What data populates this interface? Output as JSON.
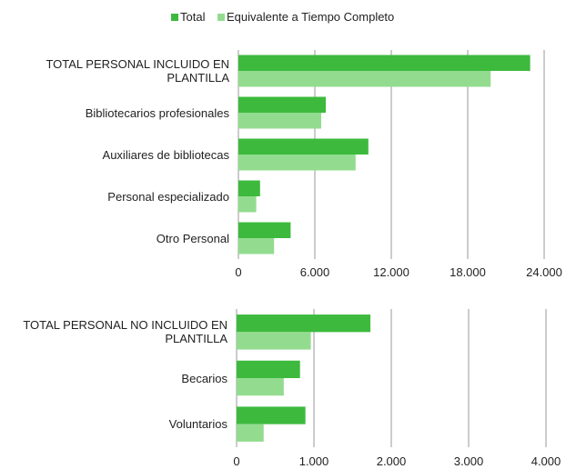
{
  "chart_data": [
    {
      "type": "hbar",
      "categories": [
        "TOTAL PERSONAL INCLUIDO EN PLANTILLA",
        "Bibliotecarios profesionales",
        "Auxiliares de bibliotecas",
        "Personal especializado",
        "Otro Personal"
      ],
      "series": [
        {
          "name": "Total",
          "color": "#3dba3d",
          "values": [
            22900,
            6860,
            10200,
            1700,
            4100
          ]
        },
        {
          "name": "Equivalente a Tiempo Completo",
          "color": "#93dc8f",
          "values": [
            19800,
            6500,
            9200,
            1400,
            2800
          ]
        }
      ],
      "xlim": [
        0,
        24000
      ],
      "xticks": [
        0,
        {
          "value": 6000,
          "label": "6.000"
        },
        {
          "value": 12000,
          "label": "12.000"
        },
        {
          "value": 18000,
          "label": "18.000"
        },
        {
          "value": 24000,
          "label": "24.000"
        }
      ],
      "grid": true,
      "legend": "top"
    },
    {
      "type": "hbar",
      "categories": [
        "TOTAL PERSONAL NO INCLUIDO EN PLANTILLA",
        "Becarios",
        "Voluntarios"
      ],
      "series": [
        {
          "color": "#3dba3d",
          "values": [
            1730,
            820,
            890
          ]
        },
        {
          "color": "#93dc8f",
          "values": [
            960,
            610,
            350
          ]
        }
      ],
      "xlim": [
        0,
        4000
      ],
      "xticks": [
        0,
        {
          "value": 1000,
          "label": "1.000"
        },
        {
          "value": 2000,
          "label": "2.000"
        },
        {
          "value": 3000,
          "label": "3.000"
        },
        {
          "value": 4000,
          "label": "4.000"
        }
      ],
      "grid": true
    }
  ]
}
